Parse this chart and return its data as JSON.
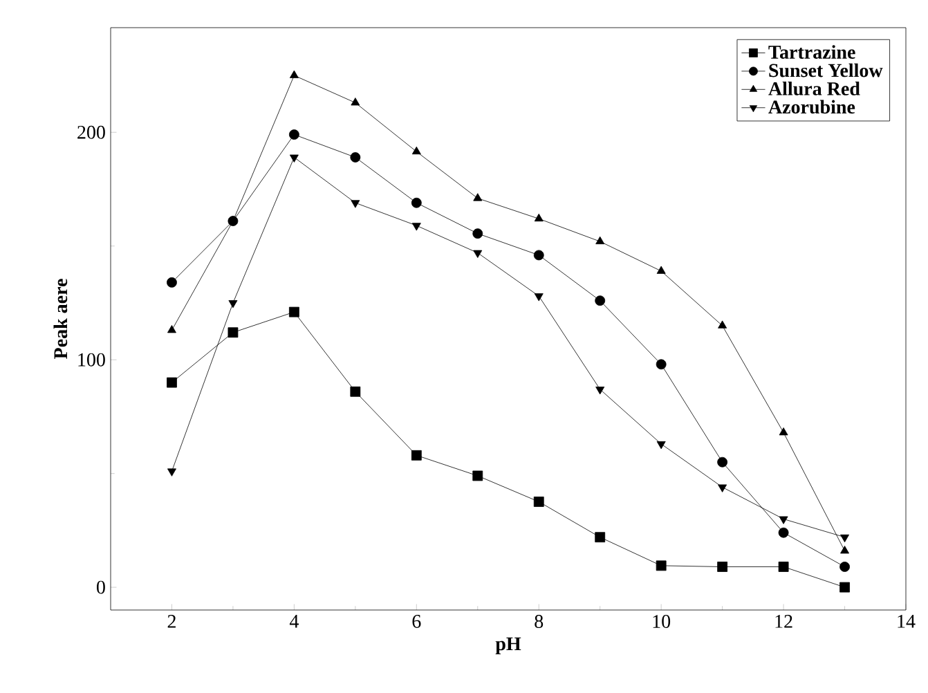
{
  "chart_data": {
    "type": "line",
    "xlabel": "pH",
    "ylabel": "Peak aere",
    "x": [
      2,
      3,
      4,
      5,
      6,
      7,
      8,
      9,
      10,
      11,
      12,
      13
    ],
    "xlim": [
      1,
      14
    ],
    "xticks": [
      2,
      4,
      6,
      8,
      10,
      12,
      14
    ],
    "ylim": [
      -10,
      246
    ],
    "yticks": [
      0,
      100,
      200
    ],
    "legend": "top right",
    "grid": false,
    "series": [
      {
        "name": "Tartrazine",
        "color": "#000000",
        "marker": "square",
        "values": [
          90,
          112,
          121,
          86,
          58,
          49,
          37.6,
          22,
          9.5,
          9,
          9,
          0
        ]
      },
      {
        "name": "Sunset Yellow",
        "color": "#000000",
        "marker": "circle",
        "values": [
          134,
          161,
          199,
          189,
          169,
          155.5,
          146,
          126,
          98,
          55,
          24,
          9
        ]
      },
      {
        "name": "Allura Red",
        "color": "#000000",
        "marker": "triangle",
        "values": [
          113,
          161,
          225,
          213,
          191.5,
          171,
          162,
          152,
          139,
          115,
          68,
          16
        ]
      },
      {
        "name": "Azorubine",
        "color": "#000000",
        "marker": "triangle down",
        "values": [
          51,
          125,
          189,
          169,
          159,
          147,
          128,
          87,
          63,
          44,
          30,
          22
        ]
      }
    ]
  }
}
